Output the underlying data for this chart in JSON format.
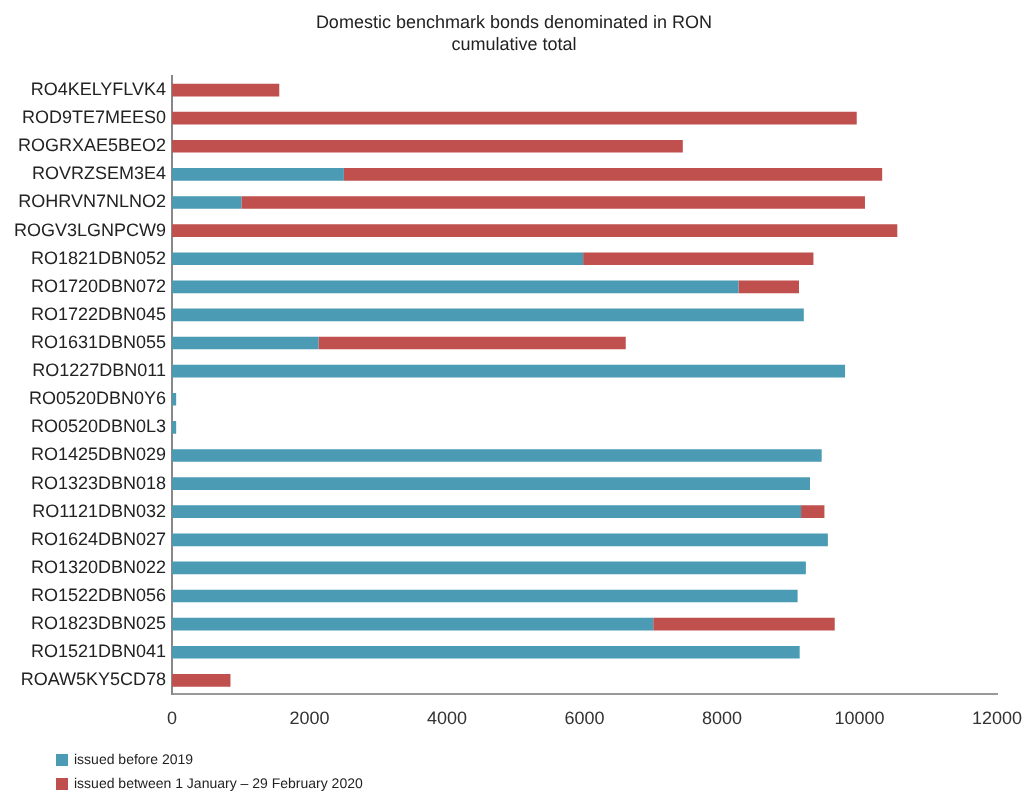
{
  "chart_data": {
    "type": "bar",
    "orientation": "horizontal",
    "stacked": true,
    "title": "Domestic benchmark bonds denominated in RON\ncumulative total",
    "categories": [
      "RO4KELYFLVK4",
      "ROD9TE7MEES0",
      "ROGRXAE5BEO2",
      "ROVRZSEM3E4",
      "ROHRVN7NLNO2",
      "ROGV3LGNPCW9",
      "RO1821DBN052",
      "RO1720DBN072",
      "RO1722DBN045",
      "RO1631DBN055",
      "RO1227DBN011",
      "RO0520DBN0Y6",
      "RO0520DBN0L3",
      "RO1425DBN029",
      "RO1323DBN018",
      "RO1121DBN032",
      "RO1624DBN027",
      "RO1320DBN022",
      "RO1522DBN056",
      "RO1823DBN025",
      "RO1521DBN041",
      "ROAW5KY5CD78"
    ],
    "series": [
      {
        "name": "issued before 2019",
        "color": "#4a9bb3",
        "values": [
          0,
          0,
          0,
          2500,
          1010,
          0,
          5980,
          8240,
          9190,
          2130,
          9790,
          60,
          60,
          9450,
          9280,
          9150,
          9540,
          9220,
          9100,
          7000,
          9130,
          0
        ]
      },
      {
        "name": "issued between 1 January – 29 February 2020",
        "color": "#c0504d",
        "values": [
          1560,
          9960,
          7430,
          7830,
          9070,
          10550,
          3350,
          880,
          0,
          4470,
          0,
          0,
          0,
          0,
          0,
          340,
          0,
          0,
          0,
          2640,
          0,
          850
        ]
      }
    ],
    "xlim": [
      0,
      12000
    ],
    "xticks": [
      0,
      2000,
      4000,
      6000,
      8000,
      10000,
      12000
    ],
    "grid": false,
    "legend": "bottom left"
  }
}
